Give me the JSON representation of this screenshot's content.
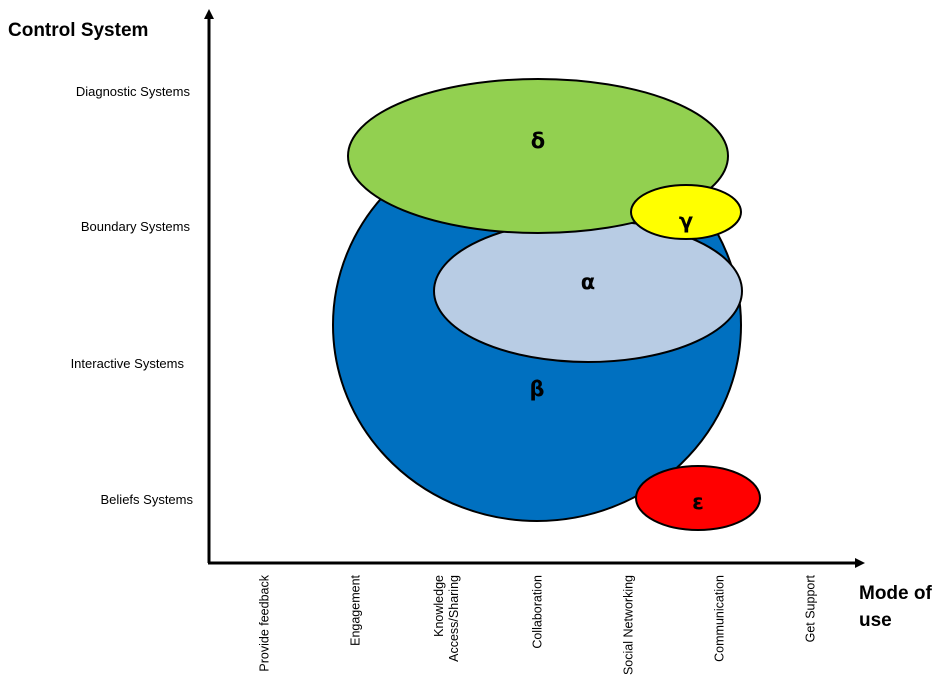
{
  "y_axis": {
    "title": "Control System",
    "levels": [
      "Diagnostic  Systems",
      "Boundary Systems",
      "Interactive  Systems",
      "Beliefs  Systems"
    ]
  },
  "x_axis": {
    "title_line1": "Mode of",
    "title_line2": "use",
    "categories": [
      {
        "lines": [
          "Provide feedback"
        ]
      },
      {
        "lines": [
          "Engagement"
        ]
      },
      {
        "lines": [
          "Knowledge",
          "Access/Sharing"
        ]
      },
      {
        "lines": [
          "Collaboration"
        ]
      },
      {
        "lines": [
          "Social Networking"
        ]
      },
      {
        "lines": [
          "Communication"
        ]
      },
      {
        "lines": [
          "Get Support"
        ]
      }
    ]
  },
  "regions": {
    "beta": {
      "label": "β",
      "color": "#0070C0"
    },
    "delta": {
      "label": "δ",
      "color": "#92D050"
    },
    "alpha": {
      "label": "α",
      "color": "#B8CCE4"
    },
    "gamma": {
      "label": "γ",
      "color": "#FFFF00"
    },
    "epsilon": {
      "label": "ε",
      "color": "#FF0000"
    }
  }
}
